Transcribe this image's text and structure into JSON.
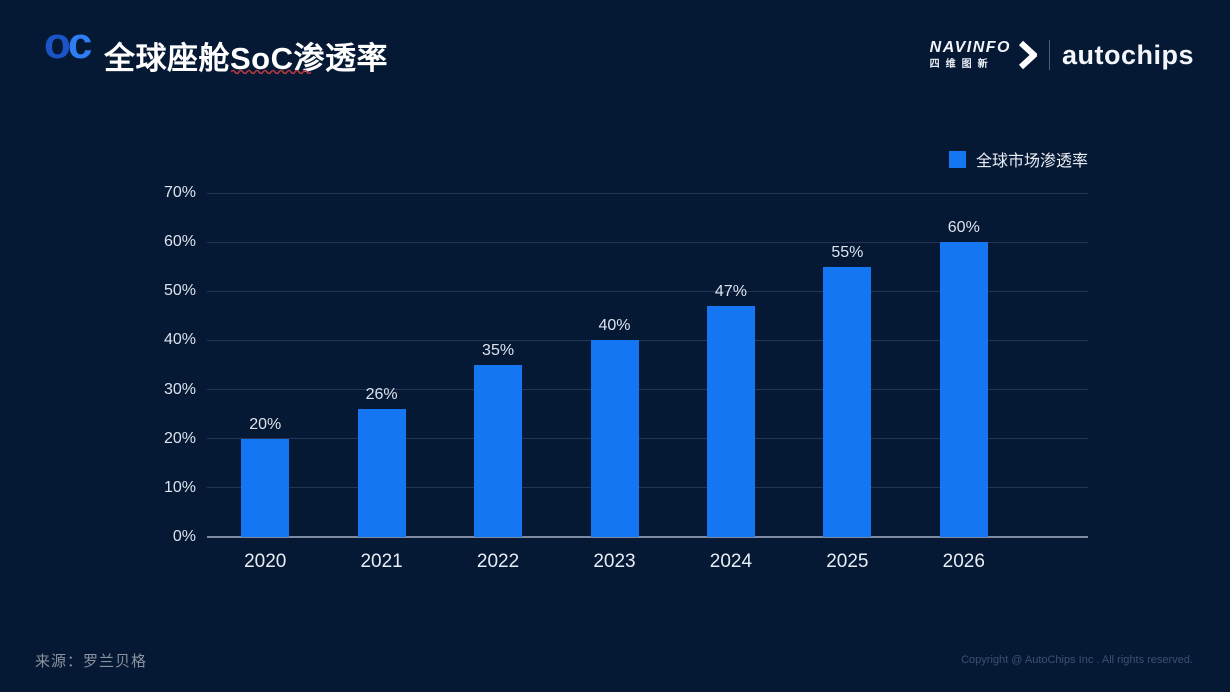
{
  "slide": {
    "background": "#051834",
    "logo": {
      "o": "o",
      "c": "c",
      "color_o": "#1b54c6",
      "color_c": "#2e7df3"
    },
    "title": "全球座舱SoC渗透率",
    "brand": {
      "navinfo": "NAVINFO",
      "navinfo_cn": "四维图新",
      "autochips": "autochips"
    },
    "footer": {
      "source": "来源：罗兰贝格",
      "copyright": "Copyright @ AutoChips Inc . All rights reserved."
    }
  },
  "chart_data": {
    "type": "bar",
    "title": "全球座舱SoC渗透率",
    "categories": [
      "2020",
      "2021",
      "2022",
      "2023",
      "2024",
      "2025",
      "2026"
    ],
    "values": [
      20,
      26,
      35,
      40,
      47,
      55,
      60
    ],
    "value_labels": [
      "20%",
      "26%",
      "35%",
      "40%",
      "47%",
      "55%",
      "60%"
    ],
    "legend": [
      "全球市场渗透率"
    ],
    "legend_position": "top-right",
    "xlabel": "",
    "ylabel": "",
    "ylim": [
      0,
      70
    ],
    "yticks": [
      0,
      10,
      20,
      30,
      40,
      50,
      60,
      70
    ],
    "ytick_labels": [
      "0%",
      "10%",
      "20%",
      "30%",
      "40%",
      "50%",
      "60%",
      "70%"
    ],
    "grid": true,
    "bar_color": "#1476F2",
    "background_color": "#051834"
  }
}
